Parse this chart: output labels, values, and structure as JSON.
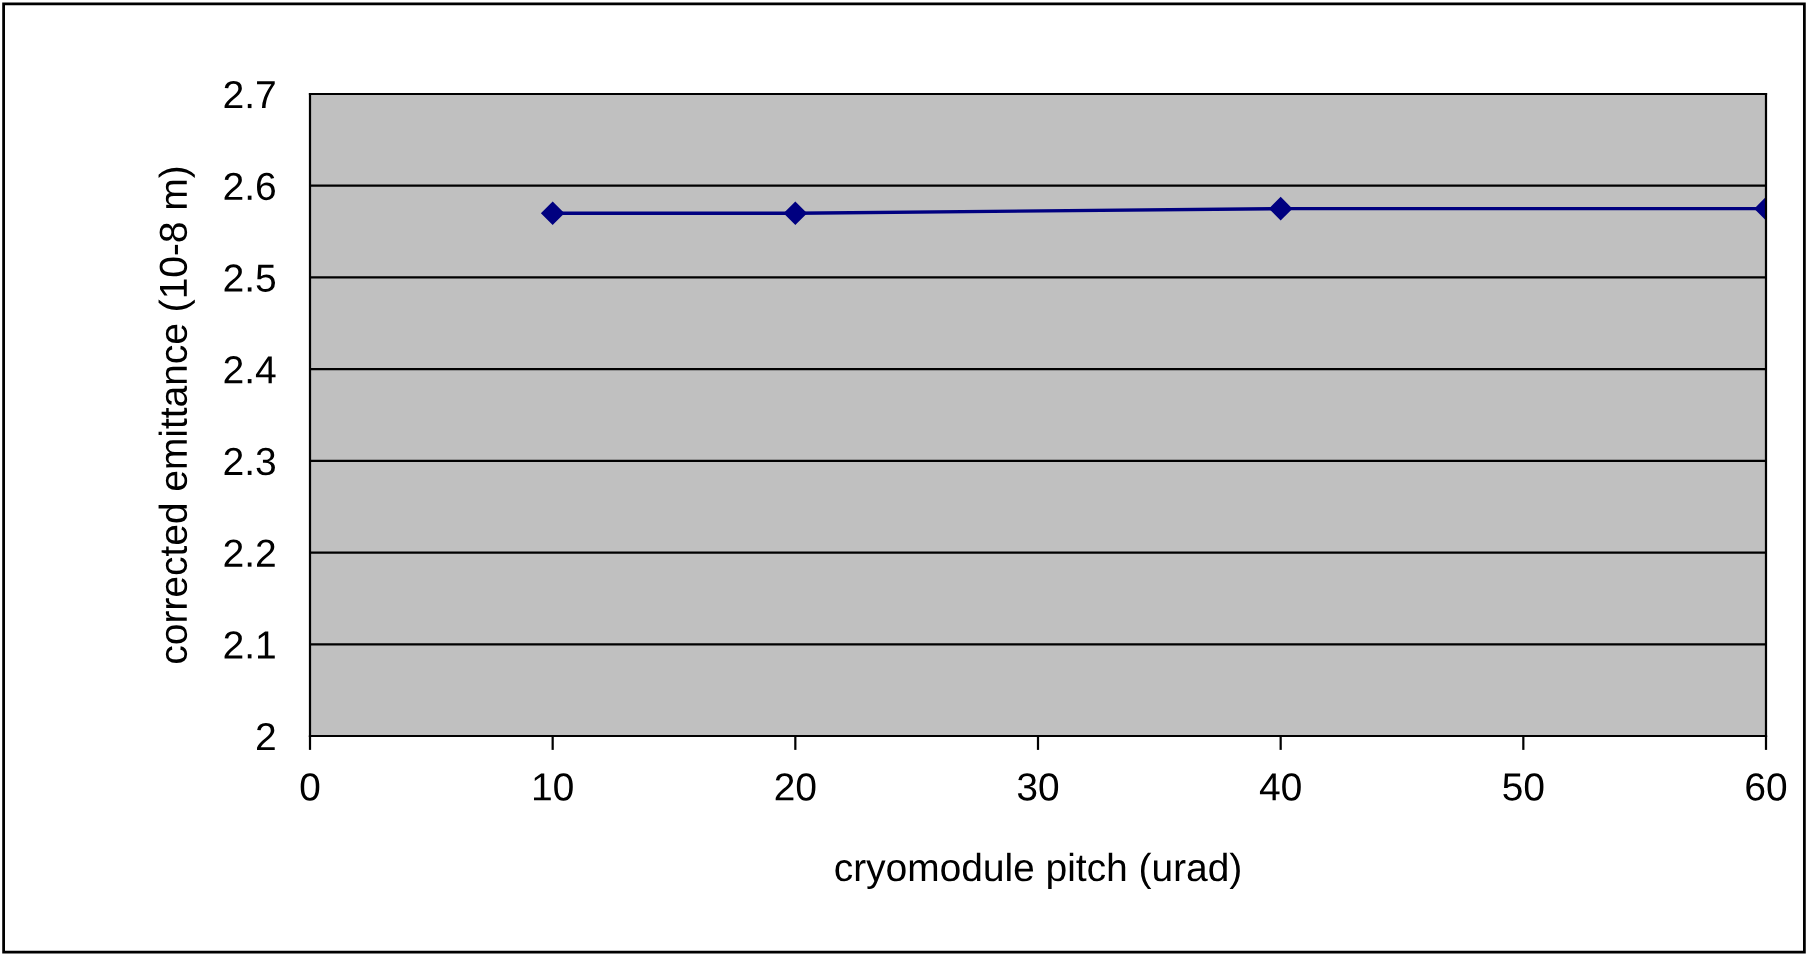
{
  "chart_data": {
    "type": "line",
    "xlabel": "cryomodule pitch (urad)",
    "ylabel": "corrected emittance (10-8 m)",
    "x": [
      10,
      20,
      40,
      60
    ],
    "series": [
      {
        "color": "#000080",
        "values": [
          2.57,
          2.57,
          2.575,
          2.575
        ]
      }
    ],
    "xlim": [
      0,
      60
    ],
    "xticks": [
      0,
      10,
      20,
      30,
      40,
      50,
      60
    ],
    "ylim": [
      2,
      2.7
    ],
    "yticks": [
      2,
      2.1,
      2.2,
      2.3,
      2.4,
      2.5,
      2.6,
      2.7
    ],
    "grid": "y",
    "marker": "diamond",
    "line_style": "solid",
    "legend": false
  }
}
